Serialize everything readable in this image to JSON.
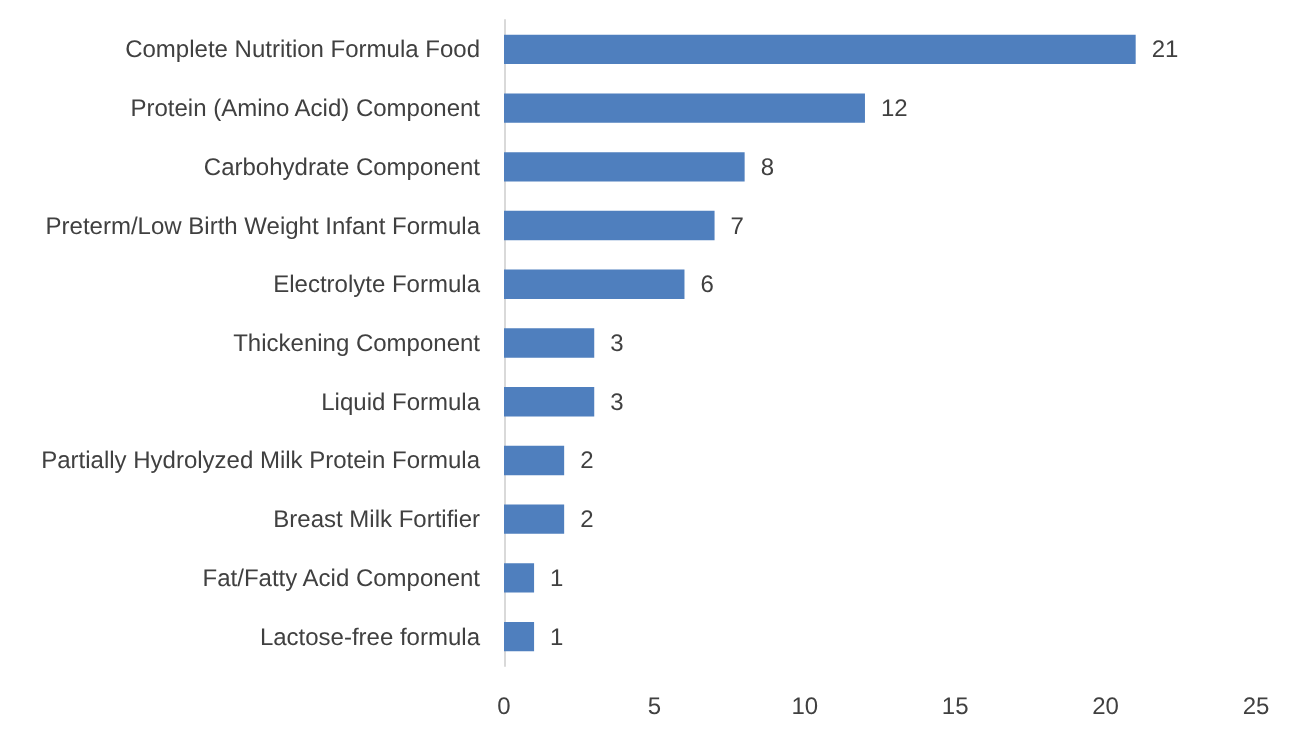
{
  "chart_data": {
    "type": "bar",
    "orientation": "horizontal",
    "categories": [
      "Complete Nutrition Formula Food",
      "Protein (Amino Acid) Component",
      "Carbohydrate Component",
      "Preterm/Low Birth Weight Infant Formula",
      "Electrolyte Formula",
      "Thickening Component",
      "Liquid Formula",
      "Partially Hydrolyzed Milk Protein Formula",
      "Breast Milk Fortifier",
      "Fat/Fatty Acid Component",
      "Lactose-free formula"
    ],
    "values": [
      21,
      12,
      8,
      7,
      6,
      3,
      3,
      2,
      2,
      1,
      1
    ],
    "color": "#4f7fbe",
    "xlim": [
      0,
      25
    ],
    "xticks": [
      0,
      5,
      10,
      15,
      20,
      25
    ],
    "data_labels": true
  }
}
